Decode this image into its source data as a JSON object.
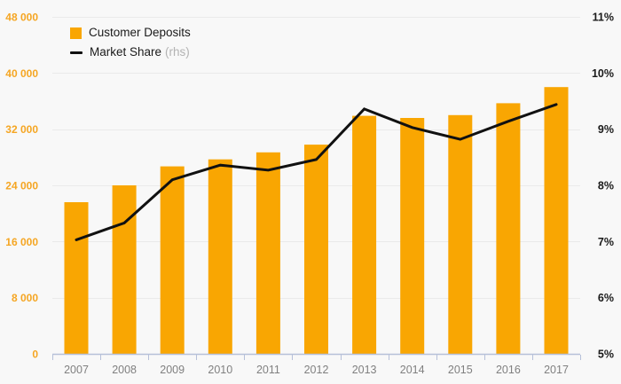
{
  "legend": {
    "items": [
      {
        "label": "Customer Deposits",
        "type": "bar",
        "color": "#F9A602"
      },
      {
        "label": "Market Share",
        "suffix": "(rhs)",
        "type": "line",
        "color": "#111111"
      }
    ]
  },
  "chart_data": {
    "type": "bar",
    "categories": [
      "2007",
      "2008",
      "2009",
      "2010",
      "2011",
      "2012",
      "2013",
      "2014",
      "2015",
      "2016",
      "2017"
    ],
    "series": [
      {
        "name": "Customer Deposits",
        "type": "bar",
        "axis": "left",
        "color": "#F9A602",
        "values": [
          21600,
          24000,
          26700,
          27700,
          28700,
          29800,
          33900,
          33600,
          34000,
          35700,
          38000
        ]
      },
      {
        "name": "Market Share (rhs)",
        "type": "line",
        "axis": "right",
        "color": "#111111",
        "values": [
          7.03,
          7.33,
          8.1,
          8.36,
          8.27,
          8.46,
          9.36,
          9.03,
          8.82,
          9.14,
          9.44
        ]
      }
    ],
    "left_axis": {
      "min": 0,
      "max": 48000,
      "step": 8000,
      "tick_labels": [
        "0",
        "8 000",
        "16 000",
        "24 000",
        "32 000",
        "40 000",
        "48 000"
      ],
      "label_color": "#F5A623"
    },
    "right_axis": {
      "min": 5,
      "max": 11,
      "step": 1,
      "tick_labels": [
        "5%",
        "6%",
        "7%",
        "8%",
        "9%",
        "10%",
        "11%"
      ],
      "label_color": "#1A1A1A"
    },
    "x_axis": {
      "label_color": "#808080"
    },
    "grid": true,
    "legend_position": "top-left",
    "gridline_color": "#EAEAEA",
    "axis_line_color": "#B6C0D9",
    "background_color": "#F8F8F8"
  }
}
